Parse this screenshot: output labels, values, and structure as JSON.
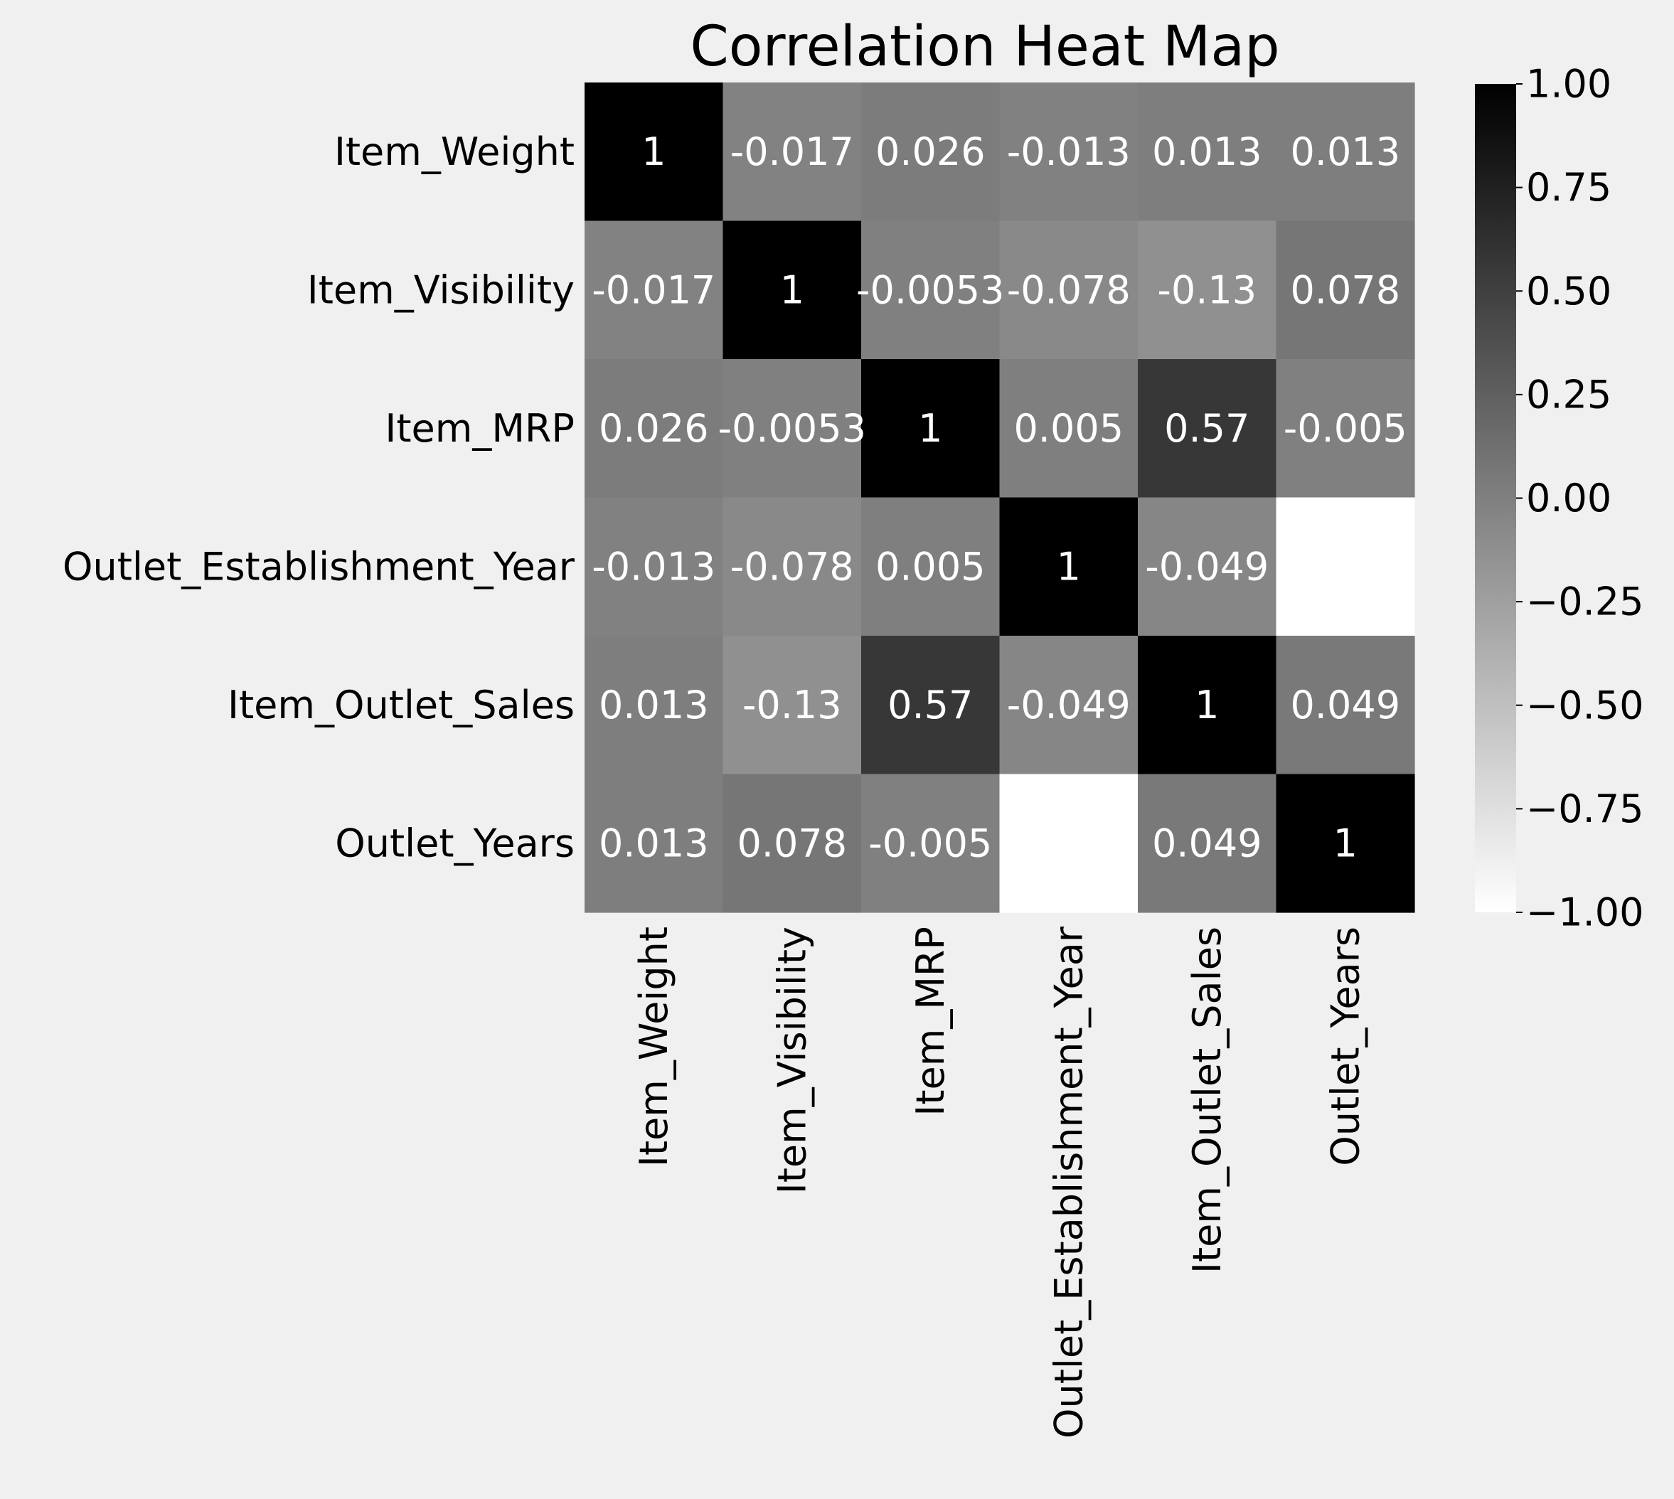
{
  "chart_data": {
    "type": "heatmap",
    "title": "Correlation Heat Map",
    "row_labels": [
      "Item_Weight",
      "Item_Visibility",
      "Item_MRP",
      "Outlet_Establishment_Year",
      "Item_Outlet_Sales",
      "Outlet_Years"
    ],
    "col_labels": [
      "Item_Weight",
      "Item_Visibility",
      "Item_MRP",
      "Outlet_Establishment_Year",
      "Item_Outlet_Sales",
      "Outlet_Years"
    ],
    "values": [
      [
        1,
        -0.017,
        0.026,
        -0.013,
        0.013,
        0.013
      ],
      [
        -0.017,
        1,
        -0.0053,
        -0.078,
        -0.13,
        0.078
      ],
      [
        0.026,
        -0.0053,
        1,
        0.005,
        0.57,
        -0.005
      ],
      [
        -0.013,
        -0.078,
        0.005,
        1,
        -0.049,
        -1
      ],
      [
        0.013,
        -0.13,
        0.57,
        -0.049,
        1,
        0.049
      ],
      [
        0.013,
        0.078,
        -0.005,
        -1,
        0.049,
        1
      ]
    ],
    "cell_labels": [
      [
        "1",
        "-0.017",
        "0.026",
        "-0.013",
        "0.013",
        "0.013"
      ],
      [
        "-0.017",
        "1",
        "-0.0053",
        "-0.078",
        "-0.13",
        "0.078"
      ],
      [
        "0.026",
        "-0.0053",
        "1",
        "0.005",
        "0.57",
        "-0.005"
      ],
      [
        "-0.013",
        "-0.078",
        "0.005",
        "1",
        "-0.049",
        "-1"
      ],
      [
        "0.013",
        "-0.13",
        "0.57",
        "-0.049",
        "1",
        "0.049"
      ],
      [
        "0.013",
        "0.078",
        "-0.005",
        "-1",
        "0.049",
        "1"
      ]
    ],
    "colorscale": {
      "name": "greys",
      "low_color": "#ffffff",
      "high_color": "#000000",
      "vmin": -1,
      "vmax": 1,
      "ticks": [
        1.0,
        0.75,
        0.5,
        0.25,
        0.0,
        -0.25,
        -0.5,
        -0.75,
        -1.0
      ],
      "tick_labels": [
        "1.00",
        "0.75",
        "0.50",
        "0.25",
        "0.00",
        "−0.25",
        "−0.50",
        "−0.75",
        "−1.00"
      ]
    },
    "annotation_color": "#ffffff",
    "background_color": "#f0f0f0"
  }
}
